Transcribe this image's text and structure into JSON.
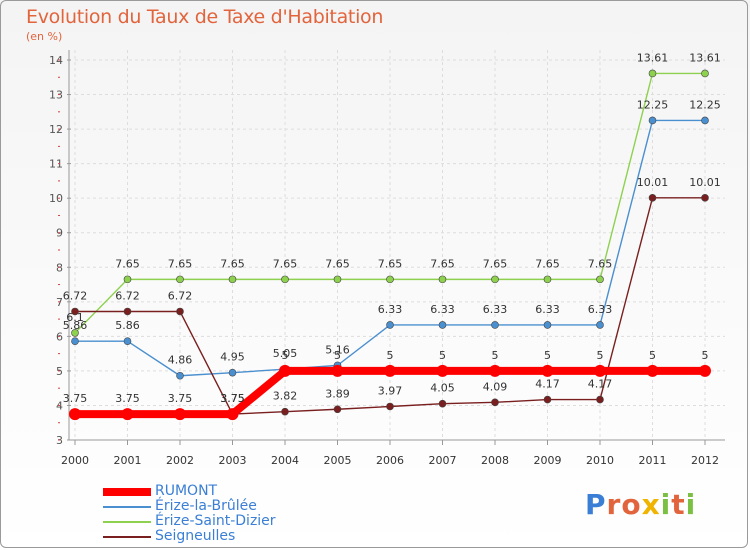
{
  "header": {
    "title": "Evolution du Taux de Taxe d'Habitation",
    "subtitle": "(en %)"
  },
  "logo": {
    "text": "Proxiti",
    "colors": [
      "#3a7fd5",
      "#e2643c",
      "#f0b400",
      "#7bc043"
    ]
  },
  "chart_data": {
    "type": "line",
    "title": "Evolution du Taux de Taxe d'Habitation",
    "ylabel": "(en %)",
    "xlabel": "",
    "x": [
      "2000",
      "2001",
      "2002",
      "2003",
      "2004",
      "2005",
      "2006",
      "2007",
      "2008",
      "2009",
      "2010",
      "2011",
      "2012"
    ],
    "ylim": [
      3,
      14
    ],
    "yticks": [
      "3",
      "4",
      "5",
      "6",
      "7",
      "8",
      "9",
      "10",
      "11",
      "12",
      "13",
      "14"
    ],
    "grid": true,
    "legend_position": "bottom-left",
    "series": [
      {
        "name": "RUMONT",
        "color": "#ff0000",
        "values": [
          3.75,
          3.75,
          3.75,
          3.75,
          5,
          5,
          5,
          5,
          5,
          5,
          5,
          5,
          5
        ],
        "labels": [
          "3.75",
          "3.75",
          "3.75",
          "3.75",
          "5",
          "5",
          "5",
          "5",
          "5",
          "5",
          "5",
          "5",
          "5"
        ]
      },
      {
        "name": "Érize-la-Brûlée",
        "color": "#4a8fcf",
        "values": [
          5.86,
          5.86,
          4.86,
          4.95,
          5.05,
          5.16,
          6.33,
          6.33,
          6.33,
          6.33,
          6.33,
          12.25,
          12.25
        ],
        "labels": [
          "5.86",
          "5.86",
          "4.86",
          "4.95",
          "5.05",
          "5.16",
          "6.33",
          "6.33",
          "6.33",
          "6.33",
          "6.33",
          "12.25",
          "12.25"
        ]
      },
      {
        "name": "Érize-Saint-Dizier",
        "color": "#8ed14f",
        "values": [
          6.1,
          7.65,
          7.65,
          7.65,
          7.65,
          7.65,
          7.65,
          7.65,
          7.65,
          7.65,
          7.65,
          13.61,
          13.61
        ],
        "labels": [
          "6.1",
          "7.65",
          "7.65",
          "7.65",
          "7.65",
          "7.65",
          "7.65",
          "7.65",
          "7.65",
          "7.65",
          "7.65",
          "13.61",
          "13.61"
        ]
      },
      {
        "name": "Seigneulles",
        "color": "#7a1f1f",
        "values": [
          6.72,
          6.72,
          6.72,
          3.75,
          3.82,
          3.89,
          3.97,
          4.05,
          4.09,
          4.17,
          4.17,
          10.01,
          10.01
        ],
        "labels": [
          "6.72",
          "6.72",
          "6.72",
          "3.75",
          "3.82",
          "3.89",
          "3.97",
          "4.05",
          "4.09",
          "4.17",
          "4.17",
          "10.01",
          "10.01"
        ]
      }
    ]
  }
}
